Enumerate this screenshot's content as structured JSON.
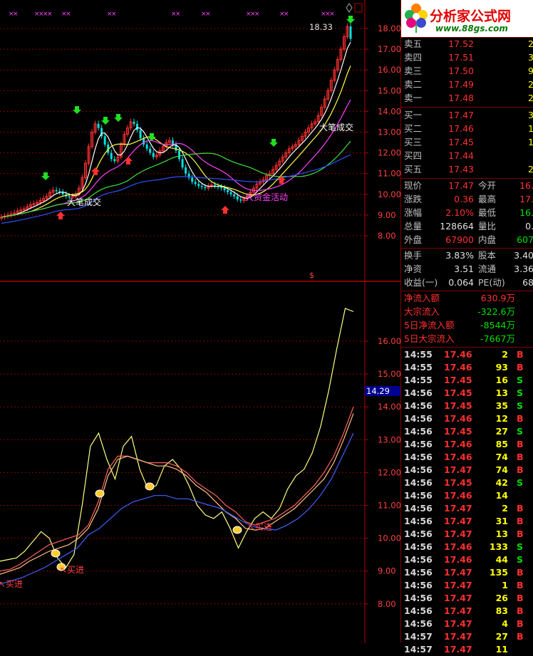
{
  "upper_chart": {
    "y_axis_labels": [
      "18.00",
      "17.00",
      "16.00",
      "15.00",
      "14.00",
      "13.00",
      "12.00",
      "11.00",
      "10.00",
      "9.00",
      "8.00"
    ],
    "peak_label": "18.33",
    "annotations": [
      "大笔成交",
      "大笔成交",
      "大资金活动"
    ],
    "marker": "$"
  },
  "lower_chart": {
    "y_axis_labels": [
      "16.00",
      "15.00",
      "14.00",
      "13.00",
      "12.00",
      "11.00",
      "10.00",
      "9.00",
      "8.00"
    ],
    "current_value": "14.29",
    "buy_labels": [
      "买进",
      "买进",
      "买进"
    ]
  },
  "logo": {
    "title": "分析家公式网",
    "url": "www.88gs.com"
  },
  "order_book": {
    "asks": [
      {
        "label": "卖五",
        "price": "17.52",
        "vol": "2"
      },
      {
        "label": "卖四",
        "price": "17.51",
        "vol": "3"
      },
      {
        "label": "卖三",
        "price": "17.50",
        "vol": "9"
      },
      {
        "label": "卖二",
        "price": "17.49",
        "vol": "2"
      },
      {
        "label": "卖一",
        "price": "17.48",
        "vol": "2"
      }
    ],
    "bids": [
      {
        "label": "买一",
        "price": "17.47",
        "vol": "3"
      },
      {
        "label": "买二",
        "price": "17.46",
        "vol": "1"
      },
      {
        "label": "买三",
        "price": "17.45",
        "vol": "1"
      },
      {
        "label": "买四",
        "price": "17.44",
        "vol": ""
      },
      {
        "label": "买五",
        "price": "17.43",
        "vol": "2"
      }
    ]
  },
  "quote": [
    {
      "l1": "现价",
      "v1": "17.47",
      "c1": "red",
      "l2": "今开",
      "v2": "16.",
      "c2": "red"
    },
    {
      "l1": "涨跌",
      "v1": "0.36",
      "c1": "red",
      "l2": "最高",
      "v2": "17.",
      "c2": "red"
    },
    {
      "l1": "涨幅",
      "v1": "2.10%",
      "c1": "red",
      "l2": "最低",
      "v2": "16.",
      "c2": "grn"
    },
    {
      "l1": "总量",
      "v1": "128664",
      "c1": "wht",
      "l2": "量比",
      "v2": "0.",
      "c2": "wht"
    },
    {
      "l1": "外盘",
      "v1": "67900",
      "c1": "red",
      "l2": "内盘",
      "v2": "607",
      "c2": "grn"
    }
  ],
  "fundamentals": [
    {
      "l1": "换手",
      "v1": "3.83%",
      "l2": "股本",
      "v2": "3.40"
    },
    {
      "l1": "净资",
      "v1": "3.51",
      "l2": "流通",
      "v2": "3.36"
    },
    {
      "l1": "收益(一)",
      "v1": "0.064",
      "l2": "PE(动)",
      "v2": "68"
    }
  ],
  "fund_flow": [
    {
      "label": "净流入额",
      "value": "630.9万",
      "c": "red"
    },
    {
      "label": "大宗流入",
      "value": "-322.6万",
      "c": "grn"
    },
    {
      "label": "5日净流入额",
      "value": "-8544万",
      "c": "grn"
    },
    {
      "label": "5日大宗流入",
      "value": "-7667万",
      "c": "grn"
    }
  ],
  "ticks": [
    {
      "t": "14:55",
      "p": "17.46",
      "pc": "red",
      "q": "2",
      "s": "B"
    },
    {
      "t": "14:55",
      "p": "17.46",
      "pc": "red",
      "q": "93",
      "s": "B"
    },
    {
      "t": "14:55",
      "p": "17.45",
      "pc": "red",
      "q": "16",
      "s": "S"
    },
    {
      "t": "14:56",
      "p": "17.45",
      "pc": "red",
      "q": "13",
      "s": "S"
    },
    {
      "t": "14:56",
      "p": "17.45",
      "pc": "red",
      "q": "35",
      "s": "S"
    },
    {
      "t": "14:56",
      "p": "17.46",
      "pc": "red",
      "q": "12",
      "s": "B"
    },
    {
      "t": "14:56",
      "p": "17.45",
      "pc": "red",
      "q": "27",
      "s": "S"
    },
    {
      "t": "14:56",
      "p": "17.46",
      "pc": "red",
      "q": "85",
      "s": "B"
    },
    {
      "t": "14:56",
      "p": "17.46",
      "pc": "red",
      "q": "74",
      "s": "B"
    },
    {
      "t": "14:56",
      "p": "17.47",
      "pc": "red",
      "q": "74",
      "s": "B"
    },
    {
      "t": "14:56",
      "p": "17.45",
      "pc": "red",
      "q": "42",
      "s": "S"
    },
    {
      "t": "14:56",
      "p": "17.46",
      "pc": "red",
      "q": "14",
      "s": ""
    },
    {
      "t": "14:56",
      "p": "17.47",
      "pc": "red",
      "q": "2",
      "s": "B"
    },
    {
      "t": "14:56",
      "p": "17.47",
      "pc": "red",
      "q": "31",
      "s": "B"
    },
    {
      "t": "14:56",
      "p": "17.47",
      "pc": "red",
      "q": "13",
      "s": "B"
    },
    {
      "t": "14:56",
      "p": "17.46",
      "pc": "red",
      "q": "133",
      "s": "S"
    },
    {
      "t": "14:56",
      "p": "17.46",
      "pc": "red",
      "q": "44",
      "s": "S"
    },
    {
      "t": "14:56",
      "p": "17.47",
      "pc": "red",
      "q": "135",
      "s": "B"
    },
    {
      "t": "14:56",
      "p": "17.47",
      "pc": "red",
      "q": "1",
      "s": "B"
    },
    {
      "t": "14:56",
      "p": "17.47",
      "pc": "red",
      "q": "26",
      "s": "B"
    },
    {
      "t": "14:56",
      "p": "17.47",
      "pc": "red",
      "q": "83",
      "s": "B"
    },
    {
      "t": "14:56",
      "p": "17.47",
      "pc": "red",
      "q": "4",
      "s": "B"
    },
    {
      "t": "14:57",
      "p": "17.47",
      "pc": "red",
      "q": "27",
      "s": "B"
    },
    {
      "t": "14:57",
      "p": "17.47",
      "pc": "red",
      "q": "11",
      "s": ""
    }
  ]
}
